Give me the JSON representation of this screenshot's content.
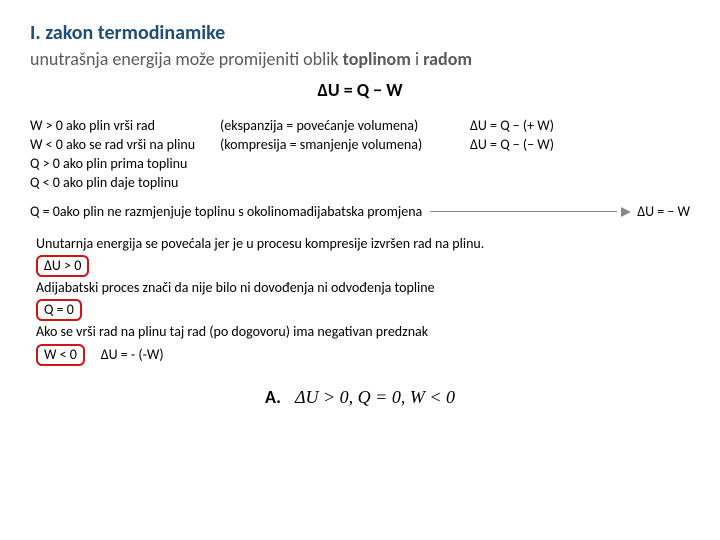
{
  "title": "I. zakon termodinamike",
  "subtitle_prefix": "unutrašnja energija može promijeniti oblik ",
  "subtitle_bold1": "toplinom",
  "subtitle_mid": " i ",
  "subtitle_bold2": "radom",
  "main_equation": "ΔU = Q − W",
  "conditions": {
    "w_pos": "W > 0 ako plin vrši rad",
    "w_pos_note": "(ekspanzija = povećanje volumena)",
    "w_pos_eq": "ΔU = Q − (+ W)",
    "w_neg": "W < 0 ako se rad vrši na plinu",
    "w_neg_note": "(kompresija = smanjenje volumena)",
    "w_neg_eq": "ΔU = Q − (− W)",
    "q_pos": "Q > 0 ako plin prima toplinu",
    "q_neg": "Q < 0 ako plin daje toplinu"
  },
  "adiabatic": {
    "q_zero": "Q = 0",
    "text": " ako plin ne razmjenjuje toplinu s okolinom ",
    "label": "adijabatska promjena",
    "result": "ΔU = − W"
  },
  "explain": {
    "line1": "Unutarnja energija se povećala jer je u procesu kompresije izvršen rad na plinu.",
    "box1": "ΔU > 0",
    "line2": "Adijabatski proces znači da nije bilo ni dovođenja ni odvođenja topline",
    "box2": "Q = 0",
    "line3": "Ako se vrši rad na plinu taj rad (po dogovoru) ima negativan predznak",
    "box3": "W < 0",
    "eq3": "ΔU = - (-W)"
  },
  "answer": {
    "label": "A.",
    "math": "ΔU > 0,  Q = 0,  W < 0"
  },
  "colors": {
    "title": "#1f4e79",
    "subtitle": "#5a5a5a",
    "box_border": "#d11515",
    "arrow": "#888888"
  }
}
